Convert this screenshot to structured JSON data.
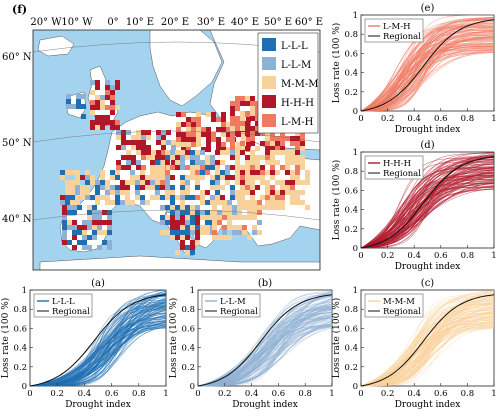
{
  "colors": {
    "LLL": "#1f6fb2",
    "LLM": "#8fb1d3",
    "MMM": "#f9d19b",
    "HHH": "#b0182a",
    "LMH": "#ee7a62",
    "regional": "#111111",
    "sea": "#a4d3ef",
    "land": "#ffffff"
  },
  "map": {
    "panel_label": "(f)",
    "lon_labels": [
      "20° W",
      "10° W",
      "0°",
      "10° E",
      "20° E",
      "30° E",
      "40° E",
      "50° E",
      "60° E"
    ],
    "lat_labels": [
      "60° N",
      "50° N",
      "40° N"
    ],
    "legend": [
      {
        "label": "L-L-L",
        "color_key": "LLL"
      },
      {
        "label": "L-L-M",
        "color_key": "LLM"
      },
      {
        "label": "M-M-M",
        "color_key": "MMM"
      },
      {
        "label": "H-H-H",
        "color_key": "HHH"
      },
      {
        "label": "L-M-H",
        "color_key": "LMH"
      }
    ]
  },
  "chart_data": [
    {
      "id": "a",
      "type": "line",
      "panel_label": "(a)",
      "series_label": "L-L-L",
      "color_key": "LLL",
      "xlabel": "Drought index",
      "ylabel": "Loss rate (100 %)",
      "xlim": [
        0,
        1
      ],
      "ylim": [
        0,
        1
      ],
      "xticks": [
        "0",
        "0.2",
        "0.4",
        "0.6",
        "0.8",
        "1"
      ],
      "yticks": [
        "0",
        "0.2",
        "0.4",
        "0.6",
        "0.8",
        "1"
      ],
      "legend": [
        "L-L-L",
        "Regional"
      ],
      "curve_center": 0.58,
      "curve_spread": 0.11
    },
    {
      "id": "b",
      "type": "line",
      "panel_label": "(b)",
      "series_label": "L-L-M",
      "color_key": "LLM",
      "xlabel": "Drought index",
      "ylabel": "Loss rate (100 %)",
      "xlim": [
        0,
        1
      ],
      "ylim": [
        0,
        1
      ],
      "xticks": [
        "0",
        "0.2",
        "0.4",
        "0.6",
        "0.8",
        "1"
      ],
      "yticks": [
        "0",
        "0.2",
        "0.4",
        "0.6",
        "0.8",
        "1"
      ],
      "legend": [
        "L-L-M",
        "Regional"
      ],
      "curve_center": 0.54,
      "curve_spread": 0.13
    },
    {
      "id": "c",
      "type": "line",
      "panel_label": "(c)",
      "series_label": "M-M-M",
      "color_key": "MMM",
      "xlabel": "Drought index",
      "ylabel": "Loss rate (100 %)",
      "xlim": [
        0,
        1
      ],
      "ylim": [
        0,
        1
      ],
      "xticks": [
        "0",
        "0.2",
        "0.4",
        "0.6",
        "0.8",
        "1"
      ],
      "yticks": [
        "0",
        "0.2",
        "0.4",
        "0.6",
        "0.8",
        "1"
      ],
      "legend": [
        "M-M-M",
        "Regional"
      ],
      "curve_center": 0.47,
      "curve_spread": 0.11
    },
    {
      "id": "d",
      "type": "line",
      "panel_label": "(d)",
      "series_label": "H-H-H",
      "color_key": "HHH",
      "xlabel": "Drought index",
      "ylabel": "Loss rate (100 %)",
      "xlim": [
        0,
        1
      ],
      "ylim": [
        0,
        1
      ],
      "xticks": [
        "0",
        "0.2",
        "0.4",
        "0.6",
        "0.8",
        "1"
      ],
      "yticks": [
        "0",
        "0.2",
        "0.4",
        "0.6",
        "0.8",
        "1"
      ],
      "legend": [
        "H-H-H",
        "Regional"
      ],
      "curve_center": 0.4,
      "curve_spread": 0.12
    },
    {
      "id": "e",
      "type": "line",
      "panel_label": "(e)",
      "series_label": "L-M-H",
      "color_key": "LMH",
      "xlabel": "Drought index",
      "ylabel": "Loss rate (100 %)",
      "xlim": [
        0,
        1
      ],
      "ylim": [
        0,
        1
      ],
      "xticks": [
        "0",
        "0.2",
        "0.4",
        "0.6",
        "0.8",
        "1"
      ],
      "yticks": [
        "0",
        "0.2",
        "0.4",
        "0.6",
        "0.8",
        "1"
      ],
      "legend": [
        "L-M-H",
        "Regional"
      ],
      "curve_center": 0.37,
      "curve_spread": 0.1
    },
    {
      "id": "regional",
      "type": "line",
      "series_label": "Regional",
      "color_key": "regional",
      "curve_center": 0.47,
      "curve_spread": 0.14
    }
  ]
}
